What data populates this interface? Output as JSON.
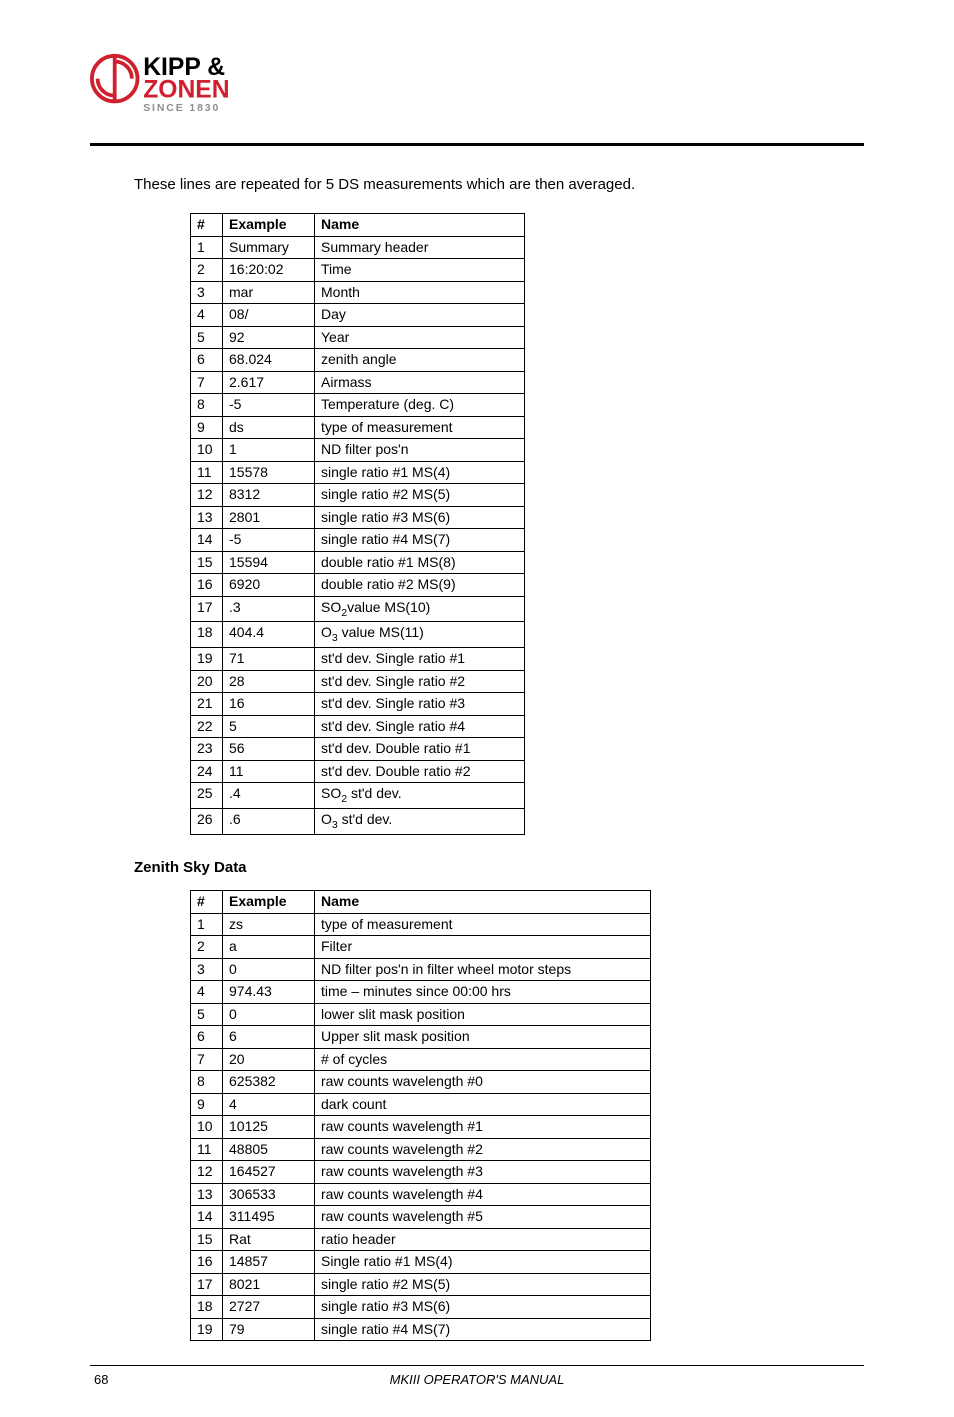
{
  "logo": {
    "line1": "KIPP &",
    "line2": "ZONEN",
    "since": "SINCE 1830",
    "red": "#d0202e",
    "black": "#000000",
    "gray": "#8a8f93"
  },
  "intro": "These lines are repeated for 5 DS measurements which are then averaged.",
  "table1": {
    "headers": [
      "#",
      "Example",
      "Name"
    ],
    "rows": [
      [
        "1",
        "Summary",
        "Summary header"
      ],
      [
        "2",
        "16:20:02",
        "Time"
      ],
      [
        "3",
        "mar",
        "Month"
      ],
      [
        "4",
        "08/",
        "Day"
      ],
      [
        "5",
        "92",
        "Year"
      ],
      [
        "6",
        "68.024",
        "zenith angle"
      ],
      [
        "7",
        "2.617",
        "Airmass"
      ],
      [
        "8",
        "-5",
        "Temperature (deg. C)"
      ],
      [
        "9",
        "ds",
        "type of measurement"
      ],
      [
        "10",
        "1",
        "ND filter pos'n"
      ],
      [
        "11",
        "15578",
        "single ratio #1 MS(4)"
      ],
      [
        "12",
        "8312",
        "single ratio #2 MS(5)"
      ],
      [
        "13",
        "2801",
        "single ratio #3 MS(6)"
      ],
      [
        "14",
        "-5",
        "single ratio #4 MS(7)"
      ],
      [
        "15",
        "15594",
        "double ratio #1 MS(8)"
      ],
      [
        "16",
        "6920",
        "double ratio #2 MS(9)"
      ],
      [
        "17",
        ".3",
        "SO<sub>2</sub>value MS(10)"
      ],
      [
        "18",
        "404.4",
        "O<sub>3</sub> value MS(11)"
      ],
      [
        "19",
        "71",
        "st'd dev. Single ratio #1"
      ],
      [
        "20",
        "28",
        "st'd dev. Single ratio #2"
      ],
      [
        "21",
        "16",
        "st'd dev. Single ratio #3"
      ],
      [
        "22",
        "5",
        "st'd dev. Single ratio #4"
      ],
      [
        "23",
        "56",
        "st'd dev. Double ratio #1"
      ],
      [
        "24",
        "11",
        "st'd dev. Double ratio #2"
      ],
      [
        "25",
        ".4",
        "SO<sub>2</sub> st'd dev."
      ],
      [
        "26",
        ".6",
        "O<sub>3</sub> st'd dev."
      ]
    ]
  },
  "section2_title": "Zenith Sky Data",
  "table2": {
    "headers": [
      "#",
      "Example",
      "Name"
    ],
    "rows": [
      [
        "1",
        "zs",
        "type of measurement"
      ],
      [
        "2",
        "a",
        "Filter"
      ],
      [
        "3",
        "0",
        "ND filter pos'n in filter wheel motor steps"
      ],
      [
        "4",
        "974.43",
        "time – minutes since 00:00 hrs"
      ],
      [
        "5",
        "0",
        "lower slit mask position"
      ],
      [
        "6",
        "6",
        "Upper slit mask position"
      ],
      [
        "7",
        "20",
        "# of cycles"
      ],
      [
        "8",
        "625382",
        "raw counts wavelength #0"
      ],
      [
        "9",
        "4",
        "dark count"
      ],
      [
        "10",
        "10125",
        "raw counts wavelength #1"
      ],
      [
        "11",
        "48805",
        "raw counts wavelength #2"
      ],
      [
        "12",
        "164527",
        "raw counts wavelength #3"
      ],
      [
        "13",
        "306533",
        "raw counts wavelength #4"
      ],
      [
        "14",
        "311495",
        "raw counts wavelength #5"
      ],
      [
        "15",
        "Rat",
        "ratio header"
      ],
      [
        "16",
        "14857",
        "Single ratio #1 MS(4)"
      ],
      [
        "17",
        "8021",
        "single ratio #2 MS(5)"
      ],
      [
        "18",
        "2727",
        "single ratio #3 MS(6)"
      ],
      [
        "19",
        "79",
        "single ratio #4 MS(7)"
      ]
    ]
  },
  "footer": {
    "page": "68",
    "title": "MKIII OPERATOR'S MANUAL"
  }
}
